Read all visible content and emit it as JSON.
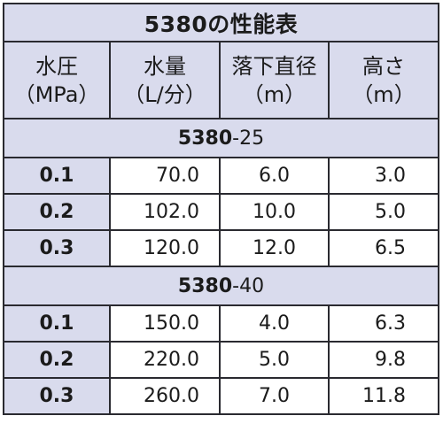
{
  "title": "5380の性能表",
  "headers": [
    {
      "line1": "水圧",
      "line2": "（MPa）"
    },
    {
      "line1": "水量",
      "line2": "（L/分）"
    },
    {
      "line1": "落下直径",
      "line2": "（m）"
    },
    {
      "line1": "高さ",
      "line2": "（m）"
    }
  ],
  "groups": [
    {
      "model_bold": "5380",
      "model_suffix": "-25",
      "rows": [
        {
          "pressure": "0.1",
          "flow": "70.0",
          "diameter": "6.0",
          "height": "3.0"
        },
        {
          "pressure": "0.2",
          "flow": "102.0",
          "diameter": "10.0",
          "height": "5.0"
        },
        {
          "pressure": "0.3",
          "flow": "120.0",
          "diameter": "12.0",
          "height": "6.5"
        }
      ]
    },
    {
      "model_bold": "5380",
      "model_suffix": "-40",
      "rows": [
        {
          "pressure": "0.1",
          "flow": "150.0",
          "diameter": "4.0",
          "height": "6.3"
        },
        {
          "pressure": "0.2",
          "flow": "220.0",
          "diameter": "5.0",
          "height": "9.8"
        },
        {
          "pressure": "0.3",
          "flow": "260.0",
          "diameter": "7.0",
          "height": "11.8"
        }
      ]
    }
  ],
  "colors": {
    "header_bg": "#d9dbed",
    "border": "#2a2a30",
    "text": "#1b1b1b"
  }
}
